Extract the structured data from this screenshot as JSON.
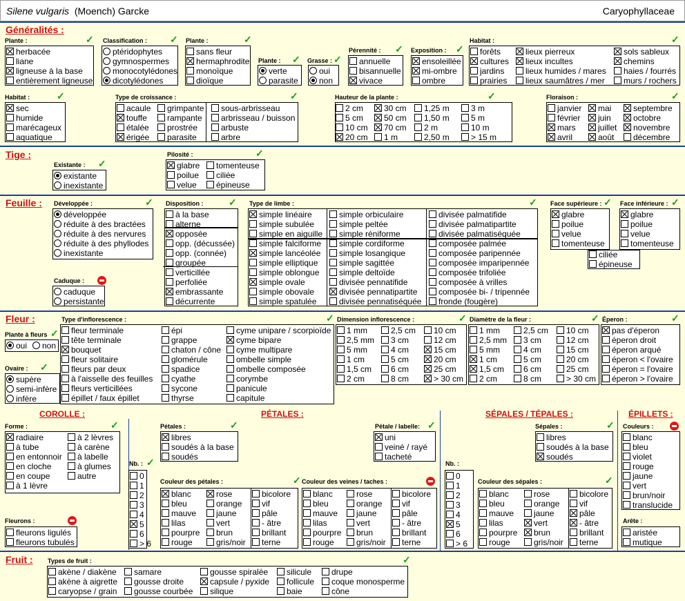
{
  "header": {
    "genus": "Silene vulgaris",
    "author": "(Moench) Garcke",
    "family": "Caryophyllaceae"
  },
  "sections": {
    "generalites": "Généralités :",
    "tige": "Tige :",
    "feuille": "Feuille :",
    "fleur": "Fleur :",
    "fruit": "Fruit :"
  },
  "subsections": {
    "corolle": "COROLLE :",
    "petales": "PÉTALES :",
    "sepales": "SÉPALES / TÉPALES :",
    "epillets": "ÉPILLETS :"
  },
  "groups": {
    "g_plante1": {
      "label": "Plante :"
    },
    "g_class": {
      "label": "Classification :"
    },
    "g_plante2": {
      "label": "Plante :"
    },
    "g_plante3": {
      "label": "Plante :"
    },
    "g_grasse": {
      "label": "Grasse :"
    },
    "g_peren": {
      "label": "Pérennité :"
    },
    "g_expo": {
      "label": "Exposition :"
    },
    "g_hab1": {
      "label": "Habitat :"
    },
    "g_hab2": {
      "label": "Habitat :"
    },
    "g_crois": {
      "label": "Type de croissance :"
    },
    "g_haut": {
      "label": "Hauteur de la plante :"
    },
    "g_flor": {
      "label": "Floraison :"
    },
    "g_exist": {
      "label": "Existante :"
    },
    "g_pilo": {
      "label": "Pilosité :"
    },
    "g_devel": {
      "label": "Développée :"
    },
    "g_cad": {
      "label": "Caduque :"
    },
    "g_dispo": {
      "label": "Disposition :"
    },
    "g_limbe": {
      "label": "Type de limbe :"
    },
    "g_fsup": {
      "label": "Face supérieure :"
    },
    "g_finf": {
      "label": "Face inférieure :"
    },
    "g_pfl": {
      "label": "Plante à fleurs"
    },
    "g_ovaire": {
      "label": "Ovaire :"
    },
    "g_inflo": {
      "label": "Type d'inflorescence :"
    },
    "g_diminf": {
      "label": "Dimension inflorescence :"
    },
    "g_diamfl": {
      "label": "Diamètre de la fleur :"
    },
    "g_eperon": {
      "label": "Éperon :"
    },
    "g_forme": {
      "label": "Forme :"
    },
    "g_fleurons": {
      "label": "Fleurons :"
    },
    "g_nb1": {
      "label": "Nb. :"
    },
    "g_petales": {
      "label": "Pétales :"
    },
    "g_plab": {
      "label": "Pétale / labelle:"
    },
    "g_coulpet": {
      "label": "Couleur des pétales :"
    },
    "g_coulvein": {
      "label": "Couleur des veines / taches :"
    },
    "g_sepales": {
      "label": "Sépales :"
    },
    "g_nb2": {
      "label": "Nb. :"
    },
    "g_coulsep": {
      "label": "Couleur des sépales :"
    },
    "g_couleurs": {
      "label": "Couleurs :"
    },
    "g_arete": {
      "label": "Arête :"
    },
    "g_typfruit": {
      "label": "Types de fruit :"
    }
  },
  "items": [
    [
      "herbacée",
      1
    ],
    [
      "liane",
      0
    ],
    [
      "ligneuse à la base",
      1
    ],
    [
      "entièrement ligneuse",
      0
    ],
    [
      "ptéridophytes",
      0
    ],
    [
      "gymnospermes",
      0
    ],
    [
      "monocotylédones",
      0
    ],
    [
      "dicotylédones",
      1
    ],
    [
      "sans fleur",
      0
    ],
    [
      "hermaphrodite",
      1
    ],
    [
      "monoïque",
      0
    ],
    [
      "dioïque",
      0
    ],
    [
      "verte",
      1
    ],
    [
      "parasite",
      0
    ],
    [
      "oui",
      0
    ],
    [
      "non",
      1
    ],
    [
      "annuelle",
      0
    ],
    [
      "bisannuelle",
      0
    ],
    [
      "vivace",
      1
    ],
    [
      "ensoleillée",
      1
    ],
    [
      "mi-ombre",
      1
    ],
    [
      "ombre",
      0
    ],
    [
      "forêts",
      0
    ],
    [
      "cultures",
      1
    ],
    [
      "jardins",
      0
    ],
    [
      "prairies",
      0
    ],
    [
      "lieux pierreux",
      1
    ],
    [
      "lieux incultes",
      1
    ],
    [
      "lieux humides / mares",
      0
    ],
    [
      "lieux saumâtres / mer",
      0
    ],
    [
      "sols sableux",
      1
    ],
    [
      "chemins",
      1
    ],
    [
      "haies / fourrés",
      0
    ],
    [
      "murs / rochers",
      0
    ],
    [
      "sec",
      1
    ],
    [
      "humide",
      0
    ],
    [
      "marécageux",
      0
    ],
    [
      "aquatique",
      0
    ],
    [
      "acaule",
      0
    ],
    [
      "touffe",
      1
    ],
    [
      "étalée",
      0
    ],
    [
      "érigée",
      1
    ],
    [
      "grimpante",
      0
    ],
    [
      "rampante",
      0
    ],
    [
      "prostrée",
      0
    ],
    [
      "parasite",
      0
    ],
    [
      "sous-arbrisseau",
      0
    ],
    [
      "arbrisseau / buisson",
      0
    ],
    [
      "arbuste",
      0
    ],
    [
      "arbre",
      0
    ],
    [
      "2 cm",
      0
    ],
    [
      "5 cm",
      0
    ],
    [
      "10 cm",
      0
    ],
    [
      "20 cm",
      1
    ],
    [
      "30 cm",
      1
    ],
    [
      "50 cm",
      1
    ],
    [
      "70 cm",
      1
    ],
    [
      "1 m",
      0
    ],
    [
      "1,25 m",
      0
    ],
    [
      "1,50 m",
      0
    ],
    [
      "2 m",
      0
    ],
    [
      "2,50 m",
      0
    ],
    [
      "3 m",
      0
    ],
    [
      "5 m",
      0
    ],
    [
      "10 m",
      0
    ],
    [
      "> 15 m",
      0
    ],
    [
      "janvier",
      0
    ],
    [
      "février",
      0
    ],
    [
      "mars",
      1
    ],
    [
      "avril",
      1
    ],
    [
      "mai",
      1
    ],
    [
      "juin",
      1
    ],
    [
      "juillet",
      1
    ],
    [
      "août",
      1
    ],
    [
      "septembre",
      1
    ],
    [
      "octobre",
      1
    ],
    [
      "novembre",
      1
    ],
    [
      "décembre",
      0
    ],
    [
      "existante",
      1
    ],
    [
      "inexistante",
      0
    ],
    [
      "glabre",
      1
    ],
    [
      "poilue",
      0
    ],
    [
      "velue",
      0
    ],
    [
      "tomenteuse",
      0
    ],
    [
      "ciliée",
      0
    ],
    [
      "épineuse",
      0
    ],
    [
      "développée",
      1
    ],
    [
      "réduite à des bractées",
      0
    ],
    [
      "réduite à des nervures",
      0
    ],
    [
      "réduite à des phyllodes",
      0
    ],
    [
      "inexistante",
      0
    ],
    [
      "caduque",
      0
    ],
    [
      "persistante",
      0
    ],
    [
      "à la base",
      0
    ],
    [
      "alterne",
      0
    ],
    [
      "opposée",
      1
    ],
    [
      "opp. (décussée)",
      0
    ],
    [
      "opp. (connée)",
      0
    ],
    [
      "groupée",
      0
    ],
    [
      "verticillée",
      0
    ],
    [
      "perfoliée",
      0
    ],
    [
      "embrassante",
      1
    ],
    [
      "décurrente",
      0
    ],
    [
      "simple linéaire",
      1
    ],
    [
      "simple subulée",
      0
    ],
    [
      "simple en aiguille",
      0
    ],
    [
      "simple falciforme",
      0
    ],
    [
      "simple lancéolée",
      1
    ],
    [
      "simple elliptique",
      0
    ],
    [
      "simple oblongue",
      0
    ],
    [
      "simple ovale",
      1
    ],
    [
      "simple obovale",
      0
    ],
    [
      "simple spatulée",
      0
    ],
    [
      "simple orbiculaire",
      0
    ],
    [
      "simple peltée",
      0
    ],
    [
      "simple réniforme",
      0
    ],
    [
      "simple cordiforme",
      0
    ],
    [
      "simple losangique",
      0
    ],
    [
      "simple sagittée",
      0
    ],
    [
      "simple deltoïde",
      0
    ],
    [
      "divisée pennatifide",
      0
    ],
    [
      "divisée pennatipartite",
      1
    ],
    [
      "divisée pennatiséquée",
      0
    ],
    [
      "divisée palmatifide",
      0
    ],
    [
      "divisée palmatipartite",
      0
    ],
    [
      "divisée palmatiséquée",
      0
    ],
    [
      "composée palmée",
      0
    ],
    [
      "composée paripennée",
      0
    ],
    [
      "composée imparipennée",
      0
    ],
    [
      "composée trifoliée",
      0
    ],
    [
      "composée à vrilles",
      0
    ],
    [
      "composée bi- / tripennée",
      0
    ],
    [
      "fronde (fougère)",
      0
    ],
    [
      "glabre",
      1
    ],
    [
      "poilue",
      0
    ],
    [
      "velue",
      0
    ],
    [
      "tomenteuse",
      0
    ],
    [
      "glabre",
      1
    ],
    [
      "poilue",
      0
    ],
    [
      "velue",
      0
    ],
    [
      "tomenteuse",
      0
    ],
    [
      "ciliée",
      0
    ],
    [
      "épineuse",
      0
    ],
    [
      "oui",
      1
    ],
    [
      "non",
      0
    ],
    [
      "supère",
      1
    ],
    [
      "semi-infère",
      0
    ],
    [
      "infère",
      0
    ],
    [
      "fleur terminale",
      0
    ],
    [
      "tête terminale",
      0
    ],
    [
      "bouquet",
      1
    ],
    [
      "fleur solitaire",
      0
    ],
    [
      "fleurs par deux",
      0
    ],
    [
      "à l'aisselle des feuilles",
      0
    ],
    [
      "fleurs verticillées",
      0
    ],
    [
      "épillet / faux épillet",
      0
    ],
    [
      "épi",
      0
    ],
    [
      "grappe",
      0
    ],
    [
      "chaton / cône",
      0
    ],
    [
      "glomérule",
      0
    ],
    [
      "spadice",
      0
    ],
    [
      "cyathe",
      0
    ],
    [
      "sycone",
      0
    ],
    [
      "thyrse",
      0
    ],
    [
      "cyme unipare / scorpioïde",
      0
    ],
    [
      "cyme bipare",
      1
    ],
    [
      "cyme multipare",
      0
    ],
    [
      "ombelle simple",
      0
    ],
    [
      "ombelle composée",
      0
    ],
    [
      "corymbe",
      0
    ],
    [
      "panicule",
      0
    ],
    [
      "capitule",
      0
    ],
    [
      "1 mm",
      0
    ],
    [
      "2,5 mm",
      0
    ],
    [
      "5 mm",
      0
    ],
    [
      "1 cm",
      0
    ],
    [
      "1,5 cm",
      0
    ],
    [
      "2 cm",
      0
    ],
    [
      "2,5 cm",
      0
    ],
    [
      "3 cm",
      0
    ],
    [
      "4 cm",
      0
    ],
    [
      "5 cm",
      0
    ],
    [
      "6 cm",
      0
    ],
    [
      "8 cm",
      0
    ],
    [
      "10 cm",
      0
    ],
    [
      "12 cm",
      0
    ],
    [
      "15 cm",
      1
    ],
    [
      "20 cm",
      1
    ],
    [
      "25 cm",
      1
    ],
    [
      "> 30 cm",
      1
    ],
    [
      "1 mm",
      0
    ],
    [
      "2,5 mm",
      0
    ],
    [
      "5 mm",
      0
    ],
    [
      "1 cm",
      1
    ],
    [
      "1,5 cm",
      1
    ],
    [
      "2 cm",
      0
    ],
    [
      "2,5 cm",
      0
    ],
    [
      "3 cm",
      0
    ],
    [
      "4 cm",
      0
    ],
    [
      "5 cm",
      0
    ],
    [
      "6 cm",
      0
    ],
    [
      "8 cm",
      0
    ],
    [
      "10 cm",
      0
    ],
    [
      "12 cm",
      0
    ],
    [
      "15 cm",
      0
    ],
    [
      "20 cm",
      0
    ],
    [
      "25 cm",
      0
    ],
    [
      "> 30 cm",
      0
    ],
    [
      "pas d'éperon",
      1
    ],
    [
      "éperon droit",
      0
    ],
    [
      "éperon arqué",
      0
    ],
    [
      "éperon < l'ovaire",
      0
    ],
    [
      "éperon = l'ovaire",
      0
    ],
    [
      "éperon > l'ovaire",
      0
    ],
    [
      "radiaire",
      1
    ],
    [
      "à tube",
      0
    ],
    [
      "en entonnoir",
      0
    ],
    [
      "en cloche",
      0
    ],
    [
      "en coupe",
      0
    ],
    [
      "à 1 lèvre",
      0
    ],
    [
      "à 2 lèvres",
      0
    ],
    [
      "à carène",
      0
    ],
    [
      "à labelle",
      0
    ],
    [
      "à glumes",
      0
    ],
    [
      "autre",
      0
    ],
    [
      "fleurons ligulés",
      0
    ],
    [
      "fleurons tubulés",
      0
    ],
    [
      "0",
      0
    ],
    [
      "1",
      0
    ],
    [
      "2",
      0
    ],
    [
      "3",
      0
    ],
    [
      "4",
      0
    ],
    [
      "5",
      1
    ],
    [
      "6",
      0
    ],
    [
      "> 6",
      0
    ],
    [
      "libres",
      1
    ],
    [
      "soudés à la base",
      0
    ],
    [
      "soudés",
      0
    ],
    [
      "uni",
      1
    ],
    [
      "veiné / rayé",
      0
    ],
    [
      "tacheté",
      0
    ],
    [
      "blanc",
      1
    ],
    [
      "bleu",
      0
    ],
    [
      "mauve",
      0
    ],
    [
      "lilas",
      0
    ],
    [
      "pourpre",
      0
    ],
    [
      "rouge",
      0
    ],
    [
      "rose",
      1
    ],
    [
      "orange",
      0
    ],
    [
      "jaune",
      0
    ],
    [
      "vert",
      0
    ],
    [
      "brun",
      0
    ],
    [
      "gris/noir",
      0
    ],
    [
      "bicolore",
      0
    ],
    [
      "vif",
      0
    ],
    [
      "pâle",
      0
    ],
    [
      "- âtre",
      0
    ],
    [
      "brillant",
      0
    ],
    [
      "terne",
      0
    ],
    [
      "blanc",
      0
    ],
    [
      "bleu",
      0
    ],
    [
      "mauve",
      0
    ],
    [
      "lilas",
      0
    ],
    [
      "pourpre",
      0
    ],
    [
      "rouge",
      0
    ],
    [
      "rose",
      0
    ],
    [
      "orange",
      0
    ],
    [
      "jaune",
      0
    ],
    [
      "vert",
      0
    ],
    [
      "brun",
      0
    ],
    [
      "gris/noir",
      0
    ],
    [
      "bicolore",
      0
    ],
    [
      "vif",
      0
    ],
    [
      "pâle",
      0
    ],
    [
      "- âtre",
      0
    ],
    [
      "brillant",
      0
    ],
    [
      "terne",
      0
    ],
    [
      "libres",
      0
    ],
    [
      "soudés à la base",
      0
    ],
    [
      "soudés",
      1
    ],
    [
      "0",
      0
    ],
    [
      "1",
      0
    ],
    [
      "2",
      0
    ],
    [
      "3",
      0
    ],
    [
      "4",
      0
    ],
    [
      "5",
      1
    ],
    [
      "6",
      0
    ],
    [
      "> 6",
      0
    ],
    [
      "blanc",
      0
    ],
    [
      "bleu",
      0
    ],
    [
      "mauve",
      0
    ],
    [
      "lilas",
      0
    ],
    [
      "pourpre",
      0
    ],
    [
      "rouge",
      0
    ],
    [
      "rose",
      0
    ],
    [
      "orange",
      0
    ],
    [
      "jaune",
      0
    ],
    [
      "vert",
      1
    ],
    [
      "brun",
      1
    ],
    [
      "gris/noir",
      0
    ],
    [
      "bicolore",
      0
    ],
    [
      "vif",
      0
    ],
    [
      "pâle",
      1
    ],
    [
      "- âtre",
      1
    ],
    [
      "brillant",
      0
    ],
    [
      "terne",
      0
    ],
    [
      "blanc",
      0
    ],
    [
      "bleu",
      0
    ],
    [
      "violet",
      0
    ],
    [
      "rouge",
      0
    ],
    [
      "jaune",
      0
    ],
    [
      "vert",
      0
    ],
    [
      "brun/noir",
      0
    ],
    [
      "translucide",
      0
    ],
    [
      "aristée",
      0
    ],
    [
      "mutique",
      0
    ],
    [
      "akène / diakène",
      0
    ],
    [
      "akène à aigrette",
      0
    ],
    [
      "caryopse / grain",
      0
    ],
    [
      "samare",
      0
    ],
    [
      "gousse droite",
      0
    ],
    [
      "gousse courbée",
      0
    ],
    [
      "gousse spiralée",
      0
    ],
    [
      "capsule / pyxide",
      1
    ],
    [
      "silique",
      0
    ],
    [
      "silicule",
      0
    ],
    [
      "follicule",
      0
    ],
    [
      "baie",
      0
    ],
    [
      "drupe",
      0
    ],
    [
      "coque monosperme",
      0
    ],
    [
      "cône",
      0
    ]
  ],
  "colors": {
    "section_title": "#cc1010",
    "check_ok": "#199a19",
    "forbidden": "#e01818",
    "panel": "#ffffe0",
    "divider": "#17409c"
  }
}
